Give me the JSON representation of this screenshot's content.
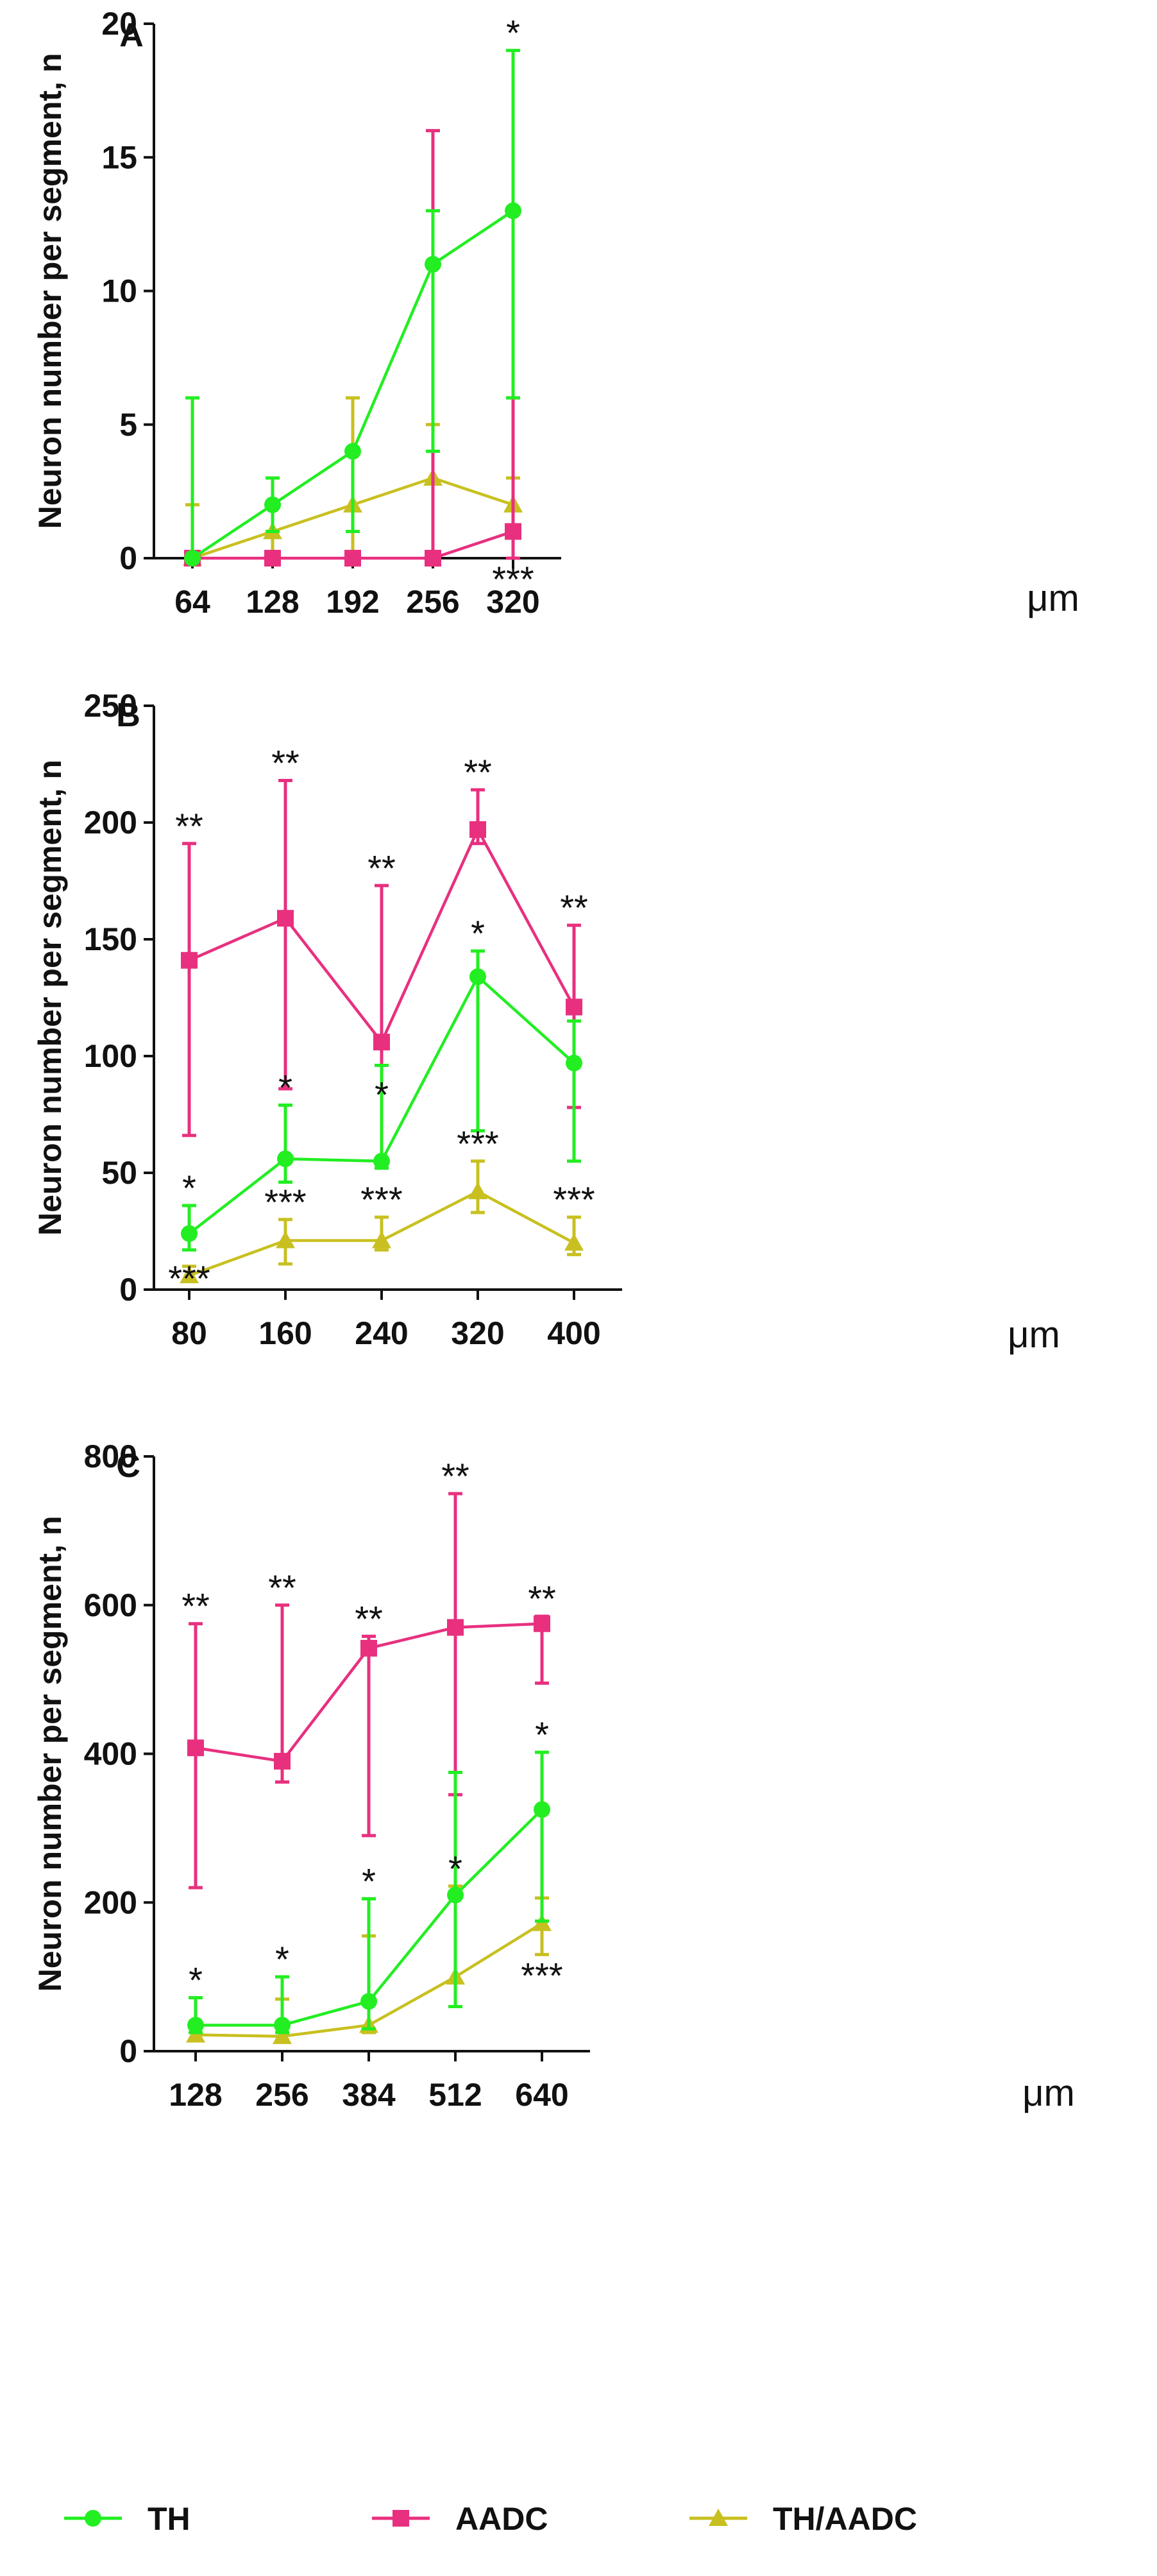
{
  "legend": [
    {
      "name": "TH",
      "color": "#22ee22",
      "marker": "circle"
    },
    {
      "name": "AADC",
      "color": "#e8307f",
      "marker": "square"
    },
    {
      "name": "TH/AADC",
      "color": "#c8c020",
      "marker": "triangle"
    }
  ],
  "chart_data": [
    {
      "panel": "A",
      "type": "line",
      "ylabel": "Neuron number per segment, n",
      "xunit": "μm",
      "ylim": [
        0,
        20
      ],
      "yticks": [
        0,
        5,
        10,
        15,
        20
      ],
      "categories": [
        "64",
        "128",
        "192",
        "256",
        "320"
      ],
      "series": [
        {
          "name": "TH",
          "values": [
            0,
            2,
            4,
            11,
            13
          ],
          "err_low": [
            0,
            1,
            1,
            4,
            6
          ],
          "err_high": [
            6,
            3,
            4,
            13,
            19
          ]
        },
        {
          "name": "AADC",
          "values": [
            0,
            0,
            0,
            0,
            1
          ],
          "err_low": [
            0,
            0,
            0,
            0,
            0
          ],
          "err_high": [
            0,
            0,
            0,
            16,
            6
          ]
        },
        {
          "name": "TH/AADC",
          "values": [
            0,
            1,
            2,
            3,
            2
          ],
          "err_low": [
            0,
            0,
            0,
            0,
            0
          ],
          "err_high": [
            2,
            1,
            6,
            5,
            3
          ]
        }
      ],
      "annotations": [
        {
          "text": "*",
          "category": 4,
          "y": 19,
          "place": "above"
        },
        {
          "text": "***",
          "category": 4,
          "y": 0,
          "place": "below"
        }
      ]
    },
    {
      "panel": "B",
      "type": "line",
      "ylabel": "Neuron number per segment, n",
      "xunit": "μm",
      "ylim": [
        0,
        250
      ],
      "yticks": [
        0,
        50,
        100,
        150,
        200,
        250
      ],
      "categories": [
        "80",
        "160",
        "240",
        "320",
        "400"
      ],
      "series": [
        {
          "name": "TH",
          "values": [
            24,
            56,
            55,
            134,
            97
          ],
          "err_low": [
            17,
            46,
            52,
            68,
            55
          ],
          "err_high": [
            36,
            79,
            96,
            145,
            115
          ]
        },
        {
          "name": "AADC",
          "values": [
            141,
            159,
            106,
            197,
            121
          ],
          "err_low": [
            66,
            86,
            96,
            191,
            78
          ],
          "err_high": [
            191,
            218,
            173,
            214,
            156
          ]
        },
        {
          "name": "TH/AADC",
          "values": [
            6,
            21,
            21,
            42,
            20
          ],
          "err_low": [
            4,
            11,
            17,
            33,
            15
          ],
          "err_high": [
            10,
            30,
            31,
            55,
            31
          ]
        }
      ],
      "annotations": [
        {
          "text": "**",
          "category": 0,
          "y": 191,
          "place": "above"
        },
        {
          "text": "*",
          "category": 0,
          "y": 36,
          "place": "above"
        },
        {
          "text": "***",
          "category": 0,
          "y": 0,
          "place": "bottom"
        },
        {
          "text": "**",
          "category": 1,
          "y": 218,
          "place": "above"
        },
        {
          "text": "*",
          "category": 1,
          "y": 79,
          "place": "above"
        },
        {
          "text": "***",
          "category": 1,
          "y": 30,
          "place": "above"
        },
        {
          "text": "**",
          "category": 2,
          "y": 173,
          "place": "above"
        },
        {
          "text": "*",
          "category": 2,
          "y": 76,
          "place": "above"
        },
        {
          "text": "***",
          "category": 2,
          "y": 31,
          "place": "above"
        },
        {
          "text": "**",
          "category": 3,
          "y": 214,
          "place": "above"
        },
        {
          "text": "*",
          "category": 3,
          "y": 145,
          "place": "above"
        },
        {
          "text": "***",
          "category": 3,
          "y": 55,
          "place": "above"
        },
        {
          "text": "**",
          "category": 4,
          "y": 156,
          "place": "above"
        },
        {
          "text": "***",
          "category": 4,
          "y": 31,
          "place": "above"
        }
      ]
    },
    {
      "panel": "C",
      "type": "line",
      "ylabel": "Neuron number per segment, n",
      "xunit": "μm",
      "ylim": [
        0,
        800
      ],
      "yticks": [
        0,
        200,
        400,
        600,
        800
      ],
      "categories": [
        "128",
        "256",
        "384",
        "512",
        "640"
      ],
      "series": [
        {
          "name": "TH",
          "values": [
            35,
            35,
            67,
            210,
            325
          ],
          "err_low": [
            25,
            25,
            30,
            60,
            175
          ],
          "err_high": [
            72,
            100,
            205,
            375,
            402
          ]
        },
        {
          "name": "AADC",
          "values": [
            408,
            390,
            542,
            570,
            575
          ],
          "err_low": [
            220,
            362,
            290,
            345,
            495
          ],
          "err_high": [
            575,
            600,
            558,
            750,
            585
          ]
        },
        {
          "name": "TH/AADC",
          "values": [
            22,
            20,
            35,
            100,
            172
          ],
          "err_low": [
            15,
            15,
            25,
            60,
            130
          ],
          "err_high": [
            25,
            70,
            155,
            222,
            206
          ]
        }
      ],
      "annotations": [
        {
          "text": "**",
          "category": 0,
          "y": 575,
          "place": "above"
        },
        {
          "text": "*",
          "category": 0,
          "y": 72,
          "place": "above"
        },
        {
          "text": "**",
          "category": 1,
          "y": 600,
          "place": "above"
        },
        {
          "text": "*",
          "category": 1,
          "y": 100,
          "place": "above"
        },
        {
          "text": "**",
          "category": 2,
          "y": 558,
          "place": "above"
        },
        {
          "text": "*",
          "category": 2,
          "y": 205,
          "place": "above"
        },
        {
          "text": "**",
          "category": 3,
          "y": 750,
          "place": "above"
        },
        {
          "text": "*",
          "category": 3,
          "y": 222,
          "place": "above"
        },
        {
          "text": "**",
          "category": 4,
          "y": 585,
          "place": "above"
        },
        {
          "text": "*",
          "category": 4,
          "y": 402,
          "place": "above"
        },
        {
          "text": "***",
          "category": 4,
          "y": 130,
          "place": "below"
        }
      ]
    }
  ]
}
